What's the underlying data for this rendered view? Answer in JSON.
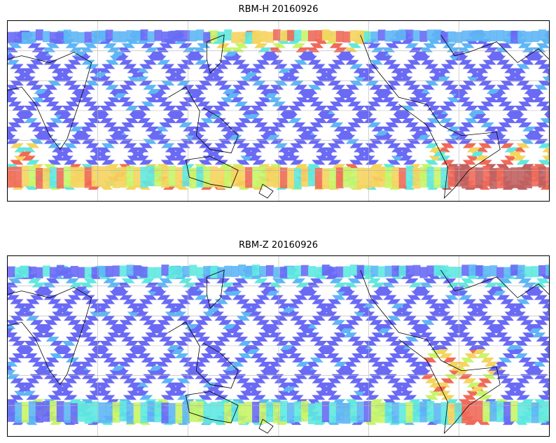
{
  "panels": [
    {
      "title": "RBM-H 20160926",
      "variant": "H"
    },
    {
      "title": "RBM-Z 20160926",
      "variant": "Z"
    }
  ],
  "map": {
    "projection": "plate-carree",
    "center_longitude": 180,
    "gridlines": true,
    "coastlines": true,
    "colormap": "jet",
    "data_style": "satellite swath tracks"
  },
  "colors": {
    "low": "#6a6af5",
    "mid_low": "#5fb6f5",
    "mid": "#5fe9e0",
    "mid_high": "#c8f56a",
    "high": "#f5d45f",
    "very_high": "#f06a5a",
    "max": "#c06060",
    "coast": "#000000",
    "grid": "#b5b5b5"
  }
}
